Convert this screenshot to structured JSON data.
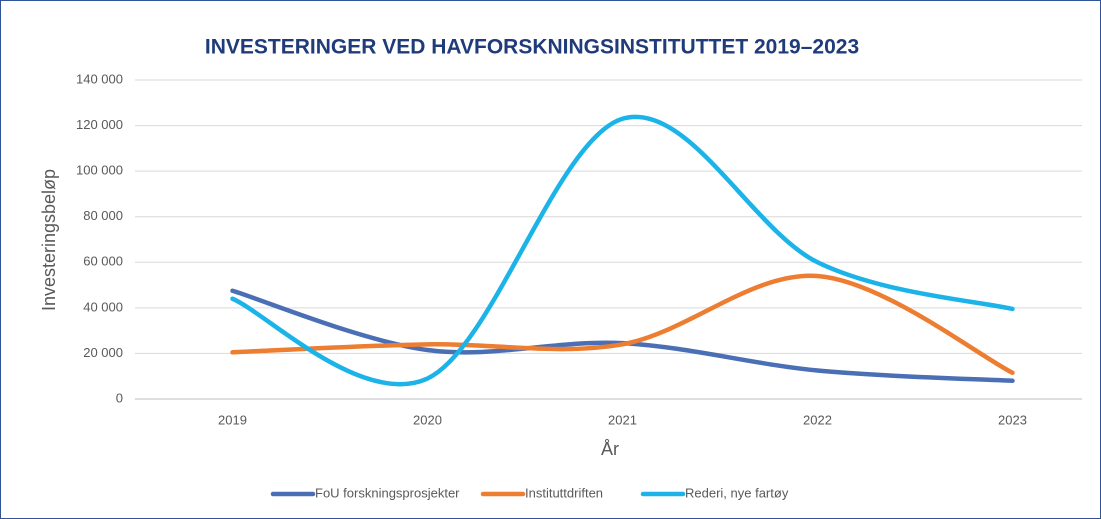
{
  "chart_data": {
    "type": "line",
    "title": "INVESTERINGER VED HAVFORSKNINGSINSTITUTTET  2019–2023",
    "y_label": "Investeringsbeløp",
    "x_label": "År",
    "categories": [
      "2019",
      "2020",
      "2021",
      "2022",
      "2023"
    ],
    "series": [
      {
        "name": "FoU forskningsprosjekter",
        "color": "#4a6fb5",
        "values": [
          47500,
          21500,
          24500,
          12500,
          8000
        ]
      },
      {
        "name": "Instituttdriften",
        "color": "#ed7d31",
        "values": [
          20500,
          24000,
          24000,
          54000,
          11500
        ]
      },
      {
        "name": "Rederi, nye fartøy",
        "color": "#1bb3e8",
        "values": [
          44000,
          9000,
          123000,
          60000,
          39500
        ]
      }
    ],
    "ylim": [
      0,
      140000
    ],
    "yticks": [
      0,
      {
        "value": 20000,
        "label": "20 000"
      },
      {
        "value": 40000,
        "label": "40 000"
      },
      {
        "value": 60000,
        "label": "60 000"
      },
      {
        "value": 80000,
        "label": "80 000"
      },
      {
        "value": 100000,
        "label": "100 000"
      },
      {
        "value": 120000,
        "label": "120 000"
      },
      {
        "value": 140000,
        "label": "140 000"
      }
    ],
    "grid": true,
    "smooth": true,
    "legend": "bottom"
  }
}
